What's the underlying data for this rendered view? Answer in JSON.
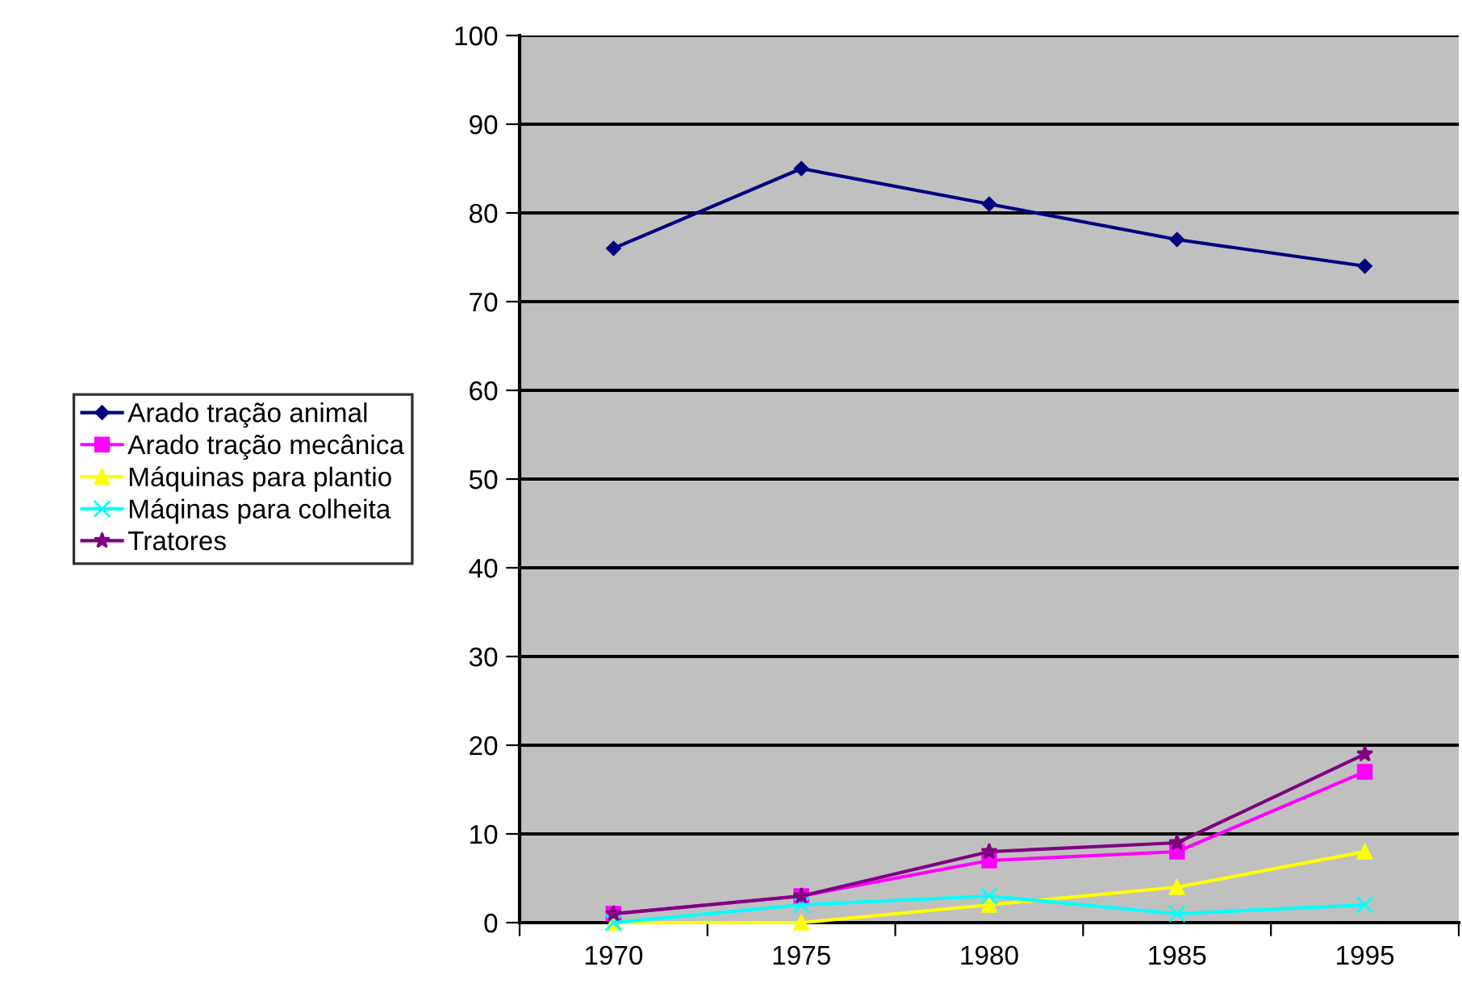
{
  "chart_data": {
    "type": "line",
    "categories": [
      "1970",
      "1975",
      "1980",
      "1985",
      "1995"
    ],
    "series": [
      {
        "name": "Arado tração animal",
        "color": "#000080",
        "marker": "diamond",
        "values": [
          76,
          85,
          81,
          77,
          74
        ]
      },
      {
        "name": "Arado tração mecânica",
        "color": "#ff00ff",
        "marker": "square",
        "values": [
          1,
          3,
          7,
          8,
          17
        ]
      },
      {
        "name": "Máquinas para plantio",
        "color": "#ffff00",
        "marker": "triangle",
        "values": [
          0,
          0,
          2,
          4,
          8
        ]
      },
      {
        "name": "Máqinas para colheita",
        "color": "#00ffff",
        "marker": "cross",
        "values": [
          0,
          2,
          3,
          1,
          2
        ]
      },
      {
        "name": "Tratores",
        "color": "#800080",
        "marker": "star",
        "values": [
          1,
          3,
          8,
          9,
          19
        ]
      }
    ],
    "ylim": [
      0,
      100
    ],
    "yticks": [
      0,
      10,
      20,
      30,
      40,
      50,
      60,
      70,
      80,
      90,
      100
    ],
    "grid": "y",
    "legend": "left"
  }
}
